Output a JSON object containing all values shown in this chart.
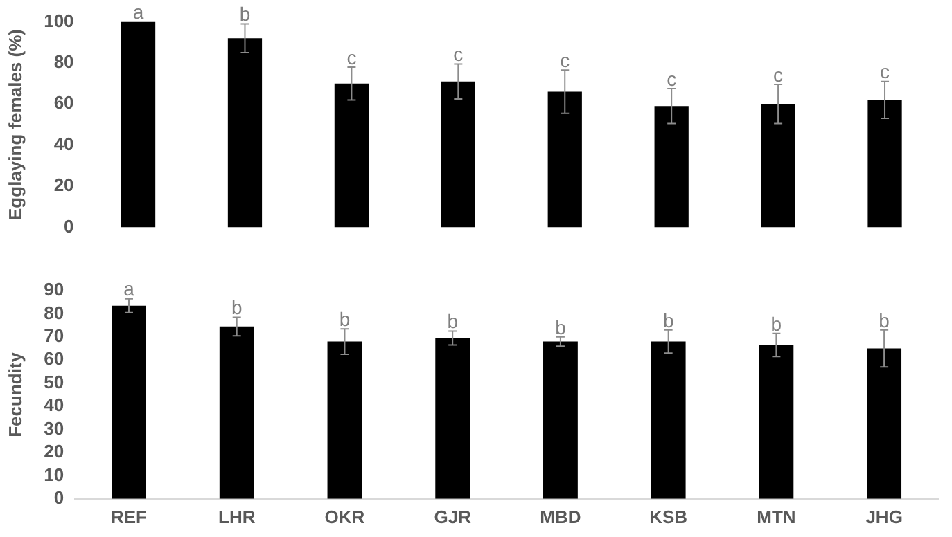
{
  "chart_data": [
    {
      "type": "bar",
      "ylabel": "Egglaying females (%)",
      "categories": [
        "REF",
        "LHR",
        "OKR",
        "GJR",
        "MBD",
        "KSB",
        "MTN",
        "JHG"
      ],
      "tick_labels": "y",
      "grid": false,
      "legend": false,
      "values": [
        100,
        92,
        70,
        71,
        66,
        59,
        60,
        62
      ],
      "errors": [
        null,
        7,
        8,
        8.5,
        10.5,
        8.5,
        9.5,
        9
      ],
      "color": "#000000",
      "ylim": [
        0,
        100
      ],
      "yticks": [
        0,
        20,
        40,
        60,
        80,
        100
      ],
      "annotations": [
        {
          "text": "a",
          "x": "REF",
          "y": 100
        },
        {
          "text": "b",
          "x": "LHR",
          "y": 99
        },
        {
          "text": "c",
          "x": "OKR",
          "y": 78
        },
        {
          "text": "c",
          "x": "GJR",
          "y": 79.5
        },
        {
          "text": "c",
          "x": "MBD",
          "y": 76.5
        },
        {
          "text": "c",
          "x": "KSB",
          "y": 67.5
        },
        {
          "text": "c",
          "x": "MTN",
          "y": 69.5
        },
        {
          "text": "c",
          "x": "JHG",
          "y": 71
        }
      ]
    },
    {
      "type": "bar",
      "ylabel": "Fecundity",
      "categories": [
        "REF",
        "LHR",
        "OKR",
        "GJR",
        "MBD",
        "KSB",
        "MTN",
        "JHG"
      ],
      "grid": false,
      "legend": false,
      "values": [
        83.5,
        74.5,
        68,
        69.5,
        68,
        68,
        66.5,
        65
      ],
      "errors": [
        3,
        4,
        5.5,
        3,
        2,
        5,
        5,
        8
      ],
      "color": "#000000",
      "ylim": [
        0,
        90
      ],
      "yticks": [
        0,
        10,
        20,
        30,
        40,
        50,
        60,
        70,
        80,
        90
      ],
      "annotations": [
        {
          "text": "a",
          "x": "REF",
          "y": 86.5
        },
        {
          "text": "b",
          "x": "LHR",
          "y": 78.5
        },
        {
          "text": "b",
          "x": "OKR",
          "y": 73.5
        },
        {
          "text": "b",
          "x": "GJR",
          "y": 72.5
        },
        {
          "text": "b",
          "x": "MBD",
          "y": 70
        },
        {
          "text": "b",
          "x": "KSB",
          "y": 73
        },
        {
          "text": "b",
          "x": "MTN",
          "y": 71.5
        },
        {
          "text": "b",
          "x": "JHG",
          "y": 73
        }
      ]
    }
  ]
}
